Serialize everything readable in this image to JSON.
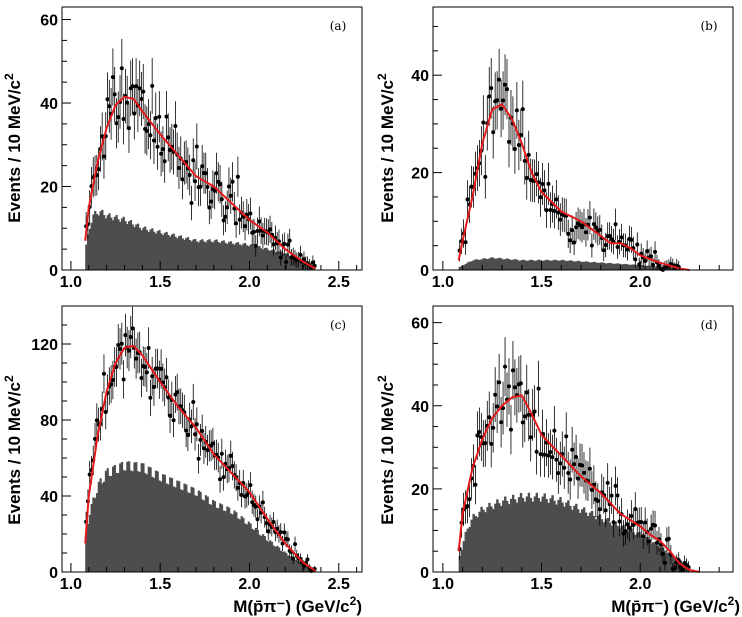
{
  "chart_data": [
    {
      "type": "histogram-with-fit",
      "tag": "(a)",
      "ylabel_main": "Events / 10 MeV/c",
      "ylabel_sup": "2",
      "xlabel_main": "",
      "xlabel_unit": "",
      "x_ticks": [
        "1.0",
        "1.5",
        "2.0",
        "2.5"
      ],
      "x_tick_values": [
        1.0,
        1.5,
        2.0,
        2.5
      ],
      "y_ticks": [
        "0",
        "20",
        "40",
        "60"
      ],
      "y_tick_values": [
        0,
        20,
        40,
        60
      ],
      "xlim": [
        0.95,
        2.63
      ],
      "ylim": [
        0,
        63
      ],
      "bin_width": 0.01,
      "histogram": {
        "lo": 1.08,
        "hi": 2.36,
        "points": [
          [
            1.08,
            5
          ],
          [
            1.12,
            13
          ],
          [
            1.16,
            14
          ],
          [
            1.2,
            13
          ],
          [
            1.3,
            12
          ],
          [
            1.4,
            10
          ],
          [
            1.5,
            9
          ],
          [
            1.6,
            8
          ],
          [
            1.7,
            7
          ],
          [
            1.8,
            7
          ],
          [
            1.9,
            6.5
          ],
          [
            2.0,
            6
          ],
          [
            2.1,
            5
          ],
          [
            2.2,
            4
          ],
          [
            2.3,
            2
          ],
          [
            2.36,
            0.5
          ]
        ]
      },
      "fit_curve": [
        [
          1.08,
          7
        ],
        [
          1.1,
          15
        ],
        [
          1.15,
          26
        ],
        [
          1.2,
          34
        ],
        [
          1.25,
          39.5
        ],
        [
          1.3,
          41.5
        ],
        [
          1.35,
          41
        ],
        [
          1.4,
          38
        ],
        [
          1.5,
          32.5
        ],
        [
          1.6,
          27.5
        ],
        [
          1.7,
          22.5
        ],
        [
          1.8,
          20
        ],
        [
          1.9,
          16
        ],
        [
          1.95,
          14
        ],
        [
          2.0,
          12
        ],
        [
          2.1,
          9
        ],
        [
          2.2,
          5
        ],
        [
          2.3,
          2
        ],
        [
          2.37,
          0.3
        ]
      ],
      "data_points": {
        "lo": 1.08,
        "hi": 2.37,
        "seed": 11
      }
    },
    {
      "type": "histogram-with-fit",
      "tag": "(b)",
      "ylabel_main": "Events / 10 MeV/c",
      "ylabel_sup": "2",
      "xlabel_main": "",
      "xlabel_unit": "",
      "x_ticks": [
        "1.0",
        "1.5",
        "2.0"
      ],
      "x_tick_values": [
        1.0,
        1.5,
        2.0
      ],
      "y_ticks": [
        "0",
        "20",
        "40"
      ],
      "y_tick_values": [
        0,
        20,
        40
      ],
      "xlim": [
        0.95,
        2.47
      ],
      "ylim": [
        0,
        54
      ],
      "bin_width": 0.01,
      "histogram": {
        "lo": 1.08,
        "hi": 2.2,
        "points": [
          [
            1.08,
            0.5
          ],
          [
            1.15,
            2
          ],
          [
            1.25,
            2.5
          ],
          [
            1.4,
            2
          ],
          [
            1.6,
            2
          ],
          [
            1.8,
            1.5
          ],
          [
            2.0,
            1
          ],
          [
            2.2,
            0.3
          ]
        ]
      },
      "fit_curve": [
        [
          1.08,
          2
        ],
        [
          1.1,
          6
        ],
        [
          1.15,
          15
        ],
        [
          1.2,
          26
        ],
        [
          1.25,
          33
        ],
        [
          1.3,
          34
        ],
        [
          1.35,
          31
        ],
        [
          1.4,
          26
        ],
        [
          1.45,
          20
        ],
        [
          1.5,
          16
        ],
        [
          1.6,
          12
        ],
        [
          1.7,
          10
        ],
        [
          1.8,
          7
        ],
        [
          1.85,
          5.5
        ],
        [
          1.9,
          5.5
        ],
        [
          1.95,
          4.5
        ],
        [
          2.0,
          3
        ],
        [
          2.1,
          1.5
        ],
        [
          2.2,
          0.3
        ],
        [
          2.25,
          0
        ]
      ],
      "data_points": {
        "lo": 1.08,
        "hi": 2.2,
        "seed": 23
      }
    },
    {
      "type": "histogram-with-fit",
      "tag": "(c)",
      "ylabel_main": "Events / 10 MeV/c",
      "ylabel_sup": "2",
      "xlabel_main": "M(p̄π⁻) (GeV/c",
      "xlabel_unit": "2",
      "x_ticks": [
        "1.0",
        "1.5",
        "2.0",
        "2.5"
      ],
      "x_tick_values": [
        1.0,
        1.5,
        2.0,
        2.5
      ],
      "y_ticks": [
        "0",
        "40",
        "80",
        "120"
      ],
      "y_tick_values": [
        0,
        40,
        80,
        120
      ],
      "xlim": [
        0.95,
        2.63
      ],
      "ylim": [
        0,
        140
      ],
      "bin_width": 0.01,
      "histogram": {
        "lo": 1.08,
        "hi": 2.37,
        "points": [
          [
            1.08,
            15
          ],
          [
            1.1,
            30
          ],
          [
            1.15,
            45
          ],
          [
            1.2,
            52
          ],
          [
            1.3,
            56
          ],
          [
            1.4,
            55
          ],
          [
            1.5,
            50
          ],
          [
            1.6,
            46
          ],
          [
            1.7,
            42
          ],
          [
            1.8,
            36
          ],
          [
            1.9,
            32
          ],
          [
            2.0,
            25
          ],
          [
            2.1,
            17
          ],
          [
            2.2,
            10
          ],
          [
            2.3,
            4
          ],
          [
            2.37,
            1
          ]
        ]
      },
      "fit_curve": [
        [
          1.08,
          15
        ],
        [
          1.1,
          40
        ],
        [
          1.15,
          72
        ],
        [
          1.2,
          95
        ],
        [
          1.25,
          110
        ],
        [
          1.3,
          118
        ],
        [
          1.35,
          119
        ],
        [
          1.4,
          114
        ],
        [
          1.5,
          100
        ],
        [
          1.6,
          87
        ],
        [
          1.7,
          76
        ],
        [
          1.8,
          62
        ],
        [
          1.9,
          52
        ],
        [
          2.0,
          42
        ],
        [
          2.1,
          28
        ],
        [
          2.2,
          15
        ],
        [
          2.3,
          5
        ],
        [
          2.37,
          0.5
        ]
      ],
      "data_points": {
        "lo": 1.08,
        "hi": 2.37,
        "seed": 37
      }
    },
    {
      "type": "histogram-with-fit",
      "tag": "(d)",
      "ylabel_main": "Events / 10 MeV/c",
      "ylabel_sup": "2",
      "xlabel_main": "M(p̄π⁻) (GeV/c",
      "xlabel_unit": "2",
      "x_ticks": [
        "1.0",
        "1.5",
        "2.0"
      ],
      "x_tick_values": [
        1.0,
        1.5,
        2.0
      ],
      "y_ticks": [
        "0",
        "20",
        "40",
        "60"
      ],
      "y_tick_values": [
        0,
        20,
        40,
        60
      ],
      "xlim": [
        0.95,
        2.47
      ],
      "ylim": [
        0,
        64
      ],
      "bin_width": 0.01,
      "histogram": {
        "lo": 1.08,
        "hi": 2.25,
        "points": [
          [
            1.08,
            3
          ],
          [
            1.12,
            10
          ],
          [
            1.15,
            13
          ],
          [
            1.2,
            15
          ],
          [
            1.3,
            17
          ],
          [
            1.4,
            18
          ],
          [
            1.5,
            18
          ],
          [
            1.6,
            17
          ],
          [
            1.7,
            15
          ],
          [
            1.8,
            13
          ],
          [
            1.9,
            11
          ],
          [
            2.0,
            9
          ],
          [
            2.1,
            6
          ],
          [
            2.2,
            3
          ],
          [
            2.25,
            1
          ]
        ]
      },
      "fit_curve": [
        [
          1.08,
          5
        ],
        [
          1.1,
          14
        ],
        [
          1.15,
          25
        ],
        [
          1.2,
          32
        ],
        [
          1.25,
          37
        ],
        [
          1.3,
          40
        ],
        [
          1.35,
          42
        ],
        [
          1.4,
          42.5
        ],
        [
          1.45,
          38
        ],
        [
          1.5,
          33
        ],
        [
          1.6,
          28
        ],
        [
          1.7,
          23
        ],
        [
          1.8,
          19
        ],
        [
          1.9,
          14
        ],
        [
          2.0,
          11
        ],
        [
          2.05,
          9
        ],
        [
          2.1,
          7.5
        ],
        [
          2.15,
          5
        ],
        [
          2.2,
          2
        ],
        [
          2.25,
          0.5
        ],
        [
          2.3,
          0
        ]
      ],
      "data_points": {
        "lo": 1.08,
        "hi": 2.25,
        "seed": 53
      }
    }
  ]
}
